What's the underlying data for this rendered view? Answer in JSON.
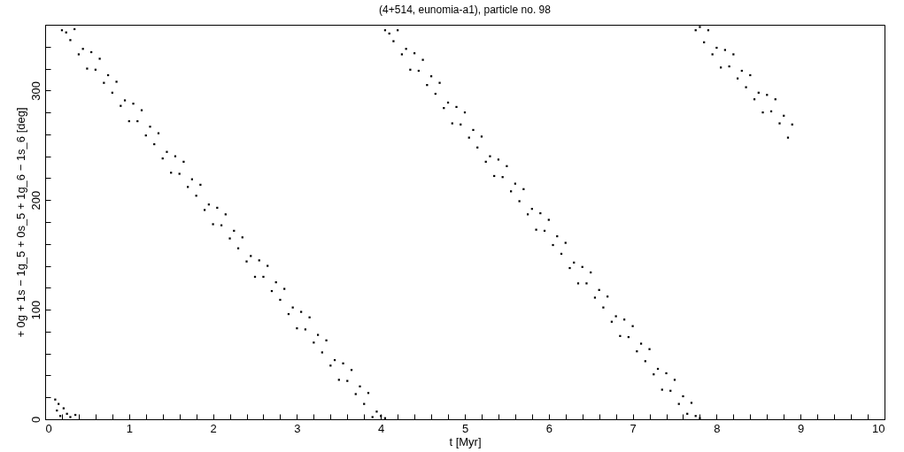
{
  "chart_data": {
    "type": "scatter",
    "title": "(4+514, eunomia-a1), particle no. 98",
    "xlabel": "t [Myr]",
    "ylabel": "+ 0g + 1s − 1g_5 + 0s_5 + 1g_6 − 1s_6 [deg]",
    "xlim": [
      0,
      10
    ],
    "ylim": [
      0,
      360
    ],
    "xticks": [
      0,
      {
        "value": 0.2,
        "label": null
      },
      {
        "value": 0.4,
        "label": null
      },
      {
        "value": 0.6,
        "label": null
      },
      {
        "value": 0.8,
        "label": null
      },
      1,
      {
        "value": 1.2,
        "label": null
      },
      {
        "value": 1.4,
        "label": null
      },
      {
        "value": 1.6,
        "label": null
      },
      {
        "value": 1.8,
        "label": null
      },
      2,
      {
        "value": 2.2,
        "label": null
      },
      {
        "value": 2.4,
        "label": null
      },
      {
        "value": 2.6,
        "label": null
      },
      {
        "value": 2.8,
        "label": null
      },
      3,
      {
        "value": 3.2,
        "label": null
      },
      {
        "value": 3.4,
        "label": null
      },
      {
        "value": 3.6,
        "label": null
      },
      {
        "value": 3.8,
        "label": null
      },
      4,
      {
        "value": 4.2,
        "label": null
      },
      {
        "value": 4.4,
        "label": null
      },
      {
        "value": 4.6,
        "label": null
      },
      {
        "value": 4.8,
        "label": null
      },
      5,
      {
        "value": 5.2,
        "label": null
      },
      {
        "value": 5.4,
        "label": null
      },
      {
        "value": 5.6,
        "label": null
      },
      {
        "value": 5.8,
        "label": null
      },
      6,
      {
        "value": 6.2,
        "label": null
      },
      {
        "value": 6.4,
        "label": null
      },
      {
        "value": 6.6,
        "label": null
      },
      {
        "value": 6.8,
        "label": null
      },
      7,
      {
        "value": 7.2,
        "label": null
      },
      {
        "value": 7.4,
        "label": null
      },
      {
        "value": 7.6,
        "label": null
      },
      {
        "value": 7.8,
        "label": null
      },
      8,
      {
        "value": 8.2,
        "label": null
      },
      {
        "value": 8.4,
        "label": null
      },
      {
        "value": 8.6,
        "label": null
      },
      {
        "value": 8.8,
        "label": null
      },
      9,
      {
        "value": 9.2,
        "label": null
      },
      {
        "value": 9.4,
        "label": null
      },
      {
        "value": 9.6,
        "label": null
      },
      {
        "value": 9.8,
        "label": null
      },
      10
    ],
    "yticks": [
      0,
      {
        "value": 20,
        "label": null
      },
      {
        "value": 40,
        "label": null
      },
      {
        "value": 60,
        "label": null
      },
      {
        "value": 80,
        "label": null
      },
      100,
      {
        "value": 120,
        "label": null
      },
      {
        "value": 140,
        "label": null
      },
      {
        "value": 160,
        "label": null
      },
      {
        "value": 180,
        "label": null
      },
      200,
      {
        "value": 220,
        "label": null
      },
      {
        "value": 240,
        "label": null
      },
      {
        "value": 260,
        "label": null
      },
      {
        "value": 280,
        "label": null
      },
      300,
      {
        "value": 320,
        "label": null
      },
      {
        "value": 340,
        "label": null
      }
    ],
    "grid": false,
    "marker": "square",
    "series": [
      {
        "color": "#000000",
        "x": [
          0.12,
          0.14,
          0.16,
          0.18,
          0.22,
          0.26,
          0.3,
          0.36
        ],
        "values": [
          18,
          8,
          14,
          3,
          10,
          5,
          2,
          4
        ]
      },
      {
        "color": "#000000",
        "x": [
          0.2,
          0.25,
          0.3,
          0.35,
          0.4,
          0.45,
          0.5,
          0.55,
          0.6,
          0.65,
          0.7,
          0.75,
          0.8,
          0.85,
          0.9,
          0.95,
          1.0,
          1.05,
          1.1,
          1.15,
          1.2,
          1.25,
          1.3,
          1.35,
          1.4,
          1.45,
          1.5,
          1.55,
          1.6,
          1.65,
          1.7,
          1.75,
          1.8,
          1.85,
          1.9,
          1.95,
          2.0,
          2.05,
          2.1,
          2.15,
          2.2,
          2.25,
          2.3,
          2.35,
          2.4,
          2.45,
          2.5,
          2.55,
          2.6,
          2.65,
          2.7,
          2.75,
          2.8,
          2.85,
          2.9,
          2.95,
          3.0,
          3.05,
          3.1,
          3.15,
          3.2,
          3.25,
          3.3,
          3.35,
          3.4,
          3.45,
          3.5,
          3.55,
          3.6,
          3.65,
          3.7,
          3.75,
          3.8,
          3.85,
          3.9,
          3.95,
          4.0,
          4.05
        ],
        "values": [
          355,
          353,
          346,
          356,
          333,
          338,
          320,
          335,
          319,
          329,
          307,
          314,
          298,
          308,
          286,
          291,
          272,
          288,
          272,
          282,
          259,
          267,
          251,
          261,
          238,
          244,
          225,
          240,
          224,
          235,
          212,
          219,
          204,
          214,
          191,
          196,
          178,
          193,
          177,
          187,
          165,
          172,
          156,
          166,
          144,
          149,
          130,
          145,
          130,
          140,
          117,
          125,
          109,
          119,
          96,
          102,
          83,
          98,
          82,
          93,
          70,
          77,
          61,
          72,
          49,
          54,
          36,
          51,
          35,
          45,
          23,
          30,
          14,
          24,
          2,
          7,
          3,
          1
        ]
      },
      {
        "color": "#000000",
        "x": [
          4.05,
          4.1,
          4.15,
          4.2,
          4.25,
          4.3,
          4.35,
          4.4,
          4.45,
          4.5,
          4.55,
          4.6,
          4.65,
          4.7,
          4.75,
          4.8,
          4.85,
          4.9,
          4.95,
          5.0,
          5.05,
          5.1,
          5.15,
          5.2,
          5.25,
          5.3,
          5.35,
          5.4,
          5.45,
          5.5,
          5.55,
          5.6,
          5.65,
          5.7,
          5.75,
          5.8,
          5.85,
          5.9,
          5.95,
          6.0,
          6.05,
          6.1,
          6.15,
          6.2,
          6.25,
          6.3,
          6.35,
          6.4,
          6.45,
          6.5,
          6.55,
          6.6,
          6.65,
          6.7,
          6.75,
          6.8,
          6.85,
          6.9,
          6.95,
          7.0,
          7.05,
          7.1,
          7.15,
          7.2,
          7.25,
          7.3,
          7.35,
          7.4,
          7.45,
          7.5,
          7.55,
          7.6,
          7.65,
          7.7,
          7.75,
          7.8
        ],
        "values": [
          355,
          352,
          345,
          355,
          333,
          338,
          319,
          334,
          318,
          328,
          305,
          313,
          297,
          307,
          284,
          289,
          270,
          285,
          269,
          280,
          257,
          264,
          248,
          258,
          235,
          240,
          222,
          237,
          221,
          231,
          208,
          215,
          199,
          210,
          187,
          192,
          173,
          188,
          172,
          182,
          159,
          167,
          151,
          161,
          138,
          143,
          124,
          139,
          124,
          134,
          111,
          118,
          102,
          112,
          89,
          94,
          76,
          91,
          75,
          85,
          62,
          69,
          53,
          64,
          41,
          46,
          27,
          42,
          26,
          36,
          14,
          21,
          5,
          15,
          3,
          1
        ]
      },
      {
        "color": "#000000",
        "x": [
          7.75,
          7.8,
          7.85,
          7.9,
          7.95,
          8.0,
          8.05,
          8.1,
          8.15,
          8.2,
          8.25,
          8.3,
          8.35,
          8.4,
          8.45,
          8.5,
          8.55,
          8.6,
          8.65,
          8.7,
          8.75,
          8.8,
          8.85,
          8.9
        ],
        "values": [
          355,
          358,
          344,
          355,
          333,
          339,
          321,
          337,
          322,
          333,
          311,
          318,
          303,
          314,
          292,
          298,
          280,
          296,
          281,
          292,
          270,
          277,
          257,
          269
        ]
      }
    ]
  }
}
